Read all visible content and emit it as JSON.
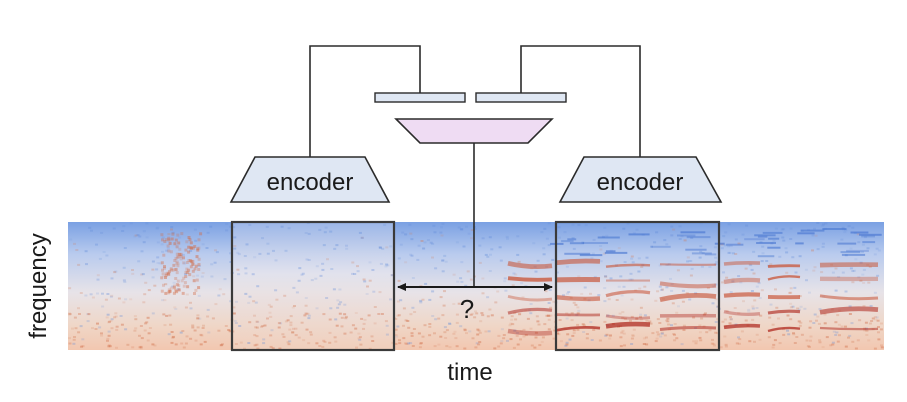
{
  "diagram": {
    "left_encoder": {
      "label": "encoder"
    },
    "right_encoder": {
      "label": "encoder"
    },
    "question": "?",
    "x_axis_label": "time",
    "y_axis_label": "frequency"
  },
  "colors": {
    "encoder_fill": "#dfe7f3",
    "combiner_fill": "#efdcf3",
    "vector_fill": "#dfe7f3",
    "outline": "#2b2b2b",
    "spectrogram_cool": "#4f7fd6",
    "spectrogram_warm": "#c8472c"
  },
  "icons": {
    "arrow": "double-headed-arrow"
  }
}
